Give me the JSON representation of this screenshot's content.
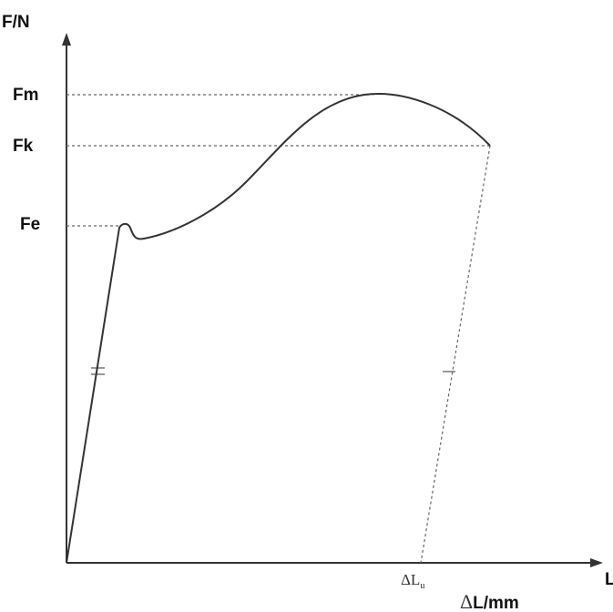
{
  "y_axis_label": "F/N",
  "x_axis_label_prefix": "Δ",
  "x_axis_label": "L/mm",
  "x_axis_end_label": "L",
  "levels": [
    {
      "id": "fm",
      "label": "Fm"
    },
    {
      "id": "fk",
      "label": "Fk"
    },
    {
      "id": "fe",
      "label": "Fe"
    }
  ],
  "x_marker": {
    "symbol": "ΔL",
    "subscript": "u"
  },
  "colors": {
    "ink": "#333333",
    "dashed": "#666666",
    "background": "#ffffff"
  }
}
